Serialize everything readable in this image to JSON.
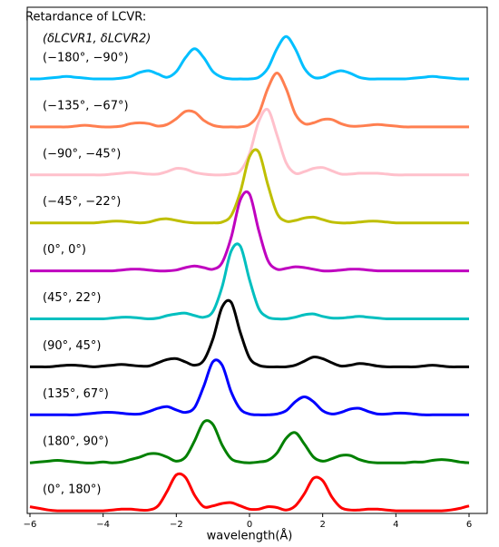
{
  "chart_data": {
    "type": "line",
    "title": "Retardance of LCVR:",
    "subtitle": "(δLCVR1, δLCVR2)",
    "xlabel": "wavelength(Å)",
    "xlim": [
      -6,
      6
    ],
    "xticks": [
      {
        "value": -6,
        "label": "−6"
      },
      {
        "value": -4,
        "label": "−4"
      },
      {
        "value": -2,
        "label": "−2"
      },
      0,
      2,
      4,
      6
    ],
    "x": [
      -6,
      -5.75,
      -5.5,
      -5.25,
      -5,
      -4.75,
      -4.5,
      -4.25,
      -4,
      -3.75,
      -3.5,
      -3.25,
      -3,
      -2.75,
      -2.5,
      -2.25,
      -2,
      -1.75,
      -1.5,
      -1.25,
      -1,
      -0.75,
      -0.5,
      -0.25,
      0,
      0.25,
      0.5,
      0.75,
      1,
      1.25,
      1.5,
      1.75,
      2,
      2.25,
      2.5,
      2.75,
      3,
      3.25,
      3.5,
      3.75,
      4,
      4.25,
      4.5,
      4.75,
      5,
      5.25,
      5.5,
      5.75,
      6
    ],
    "series": [
      {
        "name": "(−180°, −90°)",
        "color": "#00bfff",
        "values": [
          0,
          0,
          0.01,
          0.02,
          0.03,
          0.02,
          0.01,
          0,
          0,
          0,
          0.01,
          0.03,
          0.08,
          0.1,
          0.06,
          0.02,
          0.09,
          0.26,
          0.37,
          0.26,
          0.09,
          0.02,
          0,
          0,
          0,
          0.02,
          0.13,
          0.37,
          0.52,
          0.37,
          0.13,
          0.02,
          0.02,
          0.07,
          0.1,
          0.07,
          0.02,
          0,
          0,
          0,
          0,
          0,
          0.01,
          0.02,
          0.03,
          0.02,
          0.01,
          0,
          0
        ]
      },
      {
        "name": "(−135°, −67°)",
        "color": "#ff7f50",
        "values": [
          0,
          0,
          0,
          0,
          0,
          0.01,
          0.02,
          0.01,
          0,
          0,
          0.01,
          0.04,
          0.05,
          0.04,
          0.01,
          0.03,
          0.1,
          0.19,
          0.18,
          0.08,
          0.02,
          0,
          0,
          0,
          0.03,
          0.16,
          0.47,
          0.66,
          0.47,
          0.16,
          0.04,
          0.05,
          0.09,
          0.09,
          0.04,
          0.01,
          0.01,
          0.02,
          0.03,
          0.02,
          0.01,
          0,
          0,
          0,
          0,
          0,
          0,
          0,
          0
        ]
      },
      {
        "name": "(−90°, −45°)",
        "color": "#ffc0cb",
        "values": [
          0,
          0,
          0,
          0,
          0,
          0,
          0,
          0,
          0,
          0.01,
          0.02,
          0.03,
          0.02,
          0.01,
          0.01,
          0.04,
          0.08,
          0.07,
          0.03,
          0.01,
          0,
          0,
          0.01,
          0.05,
          0.26,
          0.65,
          0.8,
          0.49,
          0.15,
          0.02,
          0.04,
          0.08,
          0.09,
          0.05,
          0.01,
          0.01,
          0.02,
          0.02,
          0.02,
          0.01,
          0,
          0,
          0,
          0,
          0,
          0,
          0,
          0,
          0
        ]
      },
      {
        "name": "(−45°, −22°)",
        "color": "#bfbf00",
        "values": [
          0,
          0,
          0,
          0,
          0,
          0,
          0,
          0,
          0.01,
          0.02,
          0.02,
          0.01,
          0,
          0.01,
          0.04,
          0.05,
          0.03,
          0.01,
          0,
          0,
          0,
          0.01,
          0.09,
          0.38,
          0.81,
          0.87,
          0.47,
          0.12,
          0.02,
          0.03,
          0.06,
          0.07,
          0.04,
          0.01,
          0,
          0,
          0.01,
          0.02,
          0.02,
          0.01,
          0,
          0,
          0,
          0,
          0,
          0,
          0,
          0,
          0
        ]
      },
      {
        "name": "(0°, 0°)",
        "color": "#bf00bf",
        "values": [
          0,
          0,
          0,
          0,
          0,
          0,
          0,
          0,
          0,
          0,
          0.01,
          0.02,
          0.02,
          0.01,
          0,
          0,
          0.01,
          0.04,
          0.06,
          0.04,
          0.02,
          0.1,
          0.41,
          0.87,
          0.94,
          0.5,
          0.13,
          0.02,
          0.03,
          0.05,
          0.04,
          0.02,
          0,
          0,
          0.01,
          0.02,
          0.02,
          0.01,
          0,
          0,
          0,
          0,
          0,
          0,
          0,
          0,
          0,
          0,
          0
        ]
      },
      {
        "name": "(45°, 22°)",
        "color": "#00bfbf",
        "values": [
          0,
          0,
          0,
          0,
          0,
          0,
          0,
          0,
          0,
          0.01,
          0.02,
          0.02,
          0.01,
          0,
          0.01,
          0.04,
          0.06,
          0.07,
          0.04,
          0.02,
          0.09,
          0.39,
          0.83,
          0.89,
          0.48,
          0.13,
          0.02,
          0,
          0,
          0.02,
          0.05,
          0.06,
          0.03,
          0.01,
          0.01,
          0.02,
          0.03,
          0.02,
          0.01,
          0,
          0,
          0,
          0,
          0,
          0,
          0,
          0,
          0,
          0
        ]
      },
      {
        "name": "(90°, 45°)",
        "color": "#000000",
        "values": [
          0,
          0,
          0,
          0.01,
          0.02,
          0.02,
          0.01,
          0,
          0.01,
          0.02,
          0.03,
          0.02,
          0.01,
          0.01,
          0.05,
          0.09,
          0.1,
          0.06,
          0.02,
          0.08,
          0.34,
          0.73,
          0.79,
          0.42,
          0.11,
          0.02,
          0,
          0,
          0,
          0.02,
          0.07,
          0.12,
          0.1,
          0.05,
          0.01,
          0.02,
          0.04,
          0.03,
          0.01,
          0,
          0,
          0,
          0,
          0.01,
          0.02,
          0.01,
          0,
          0,
          0
        ]
      },
      {
        "name": "(135°, 67°)",
        "color": "#0000ff",
        "values": [
          0,
          0,
          0,
          0,
          0,
          0,
          0.01,
          0.02,
          0.03,
          0.03,
          0.02,
          0.01,
          0.01,
          0.04,
          0.08,
          0.1,
          0.06,
          0.03,
          0.09,
          0.35,
          0.65,
          0.61,
          0.28,
          0.07,
          0.01,
          0,
          0,
          0.01,
          0.05,
          0.16,
          0.22,
          0.16,
          0.05,
          0.01,
          0.03,
          0.07,
          0.08,
          0.04,
          0.01,
          0.01,
          0.02,
          0.02,
          0.01,
          0,
          0,
          0,
          0,
          0,
          0
        ]
      },
      {
        "name": "(180°, 90°)",
        "color": "#008000",
        "values": [
          0,
          0.01,
          0.02,
          0.03,
          0.02,
          0.01,
          0,
          0,
          0.01,
          0,
          0.01,
          0.04,
          0.07,
          0.11,
          0.11,
          0.07,
          0.02,
          0.07,
          0.27,
          0.5,
          0.47,
          0.22,
          0.05,
          0.01,
          0,
          0.01,
          0.03,
          0.12,
          0.3,
          0.37,
          0.23,
          0.07,
          0.02,
          0.05,
          0.09,
          0.09,
          0.04,
          0.01,
          0,
          0,
          0,
          0,
          0.01,
          0.01,
          0.03,
          0.04,
          0.03,
          0.01,
          0
        ]
      },
      {
        "name": "(0°, 180°)",
        "color": "#ff0000",
        "values": [
          0.05,
          0.03,
          0.01,
          0,
          0,
          0,
          0,
          0,
          0,
          0.01,
          0.02,
          0.02,
          0.01,
          0.01,
          0.06,
          0.24,
          0.44,
          0.41,
          0.19,
          0.05,
          0.06,
          0.09,
          0.1,
          0.06,
          0.02,
          0.02,
          0.05,
          0.04,
          0.01,
          0.06,
          0.21,
          0.4,
          0.37,
          0.17,
          0.04,
          0.01,
          0.01,
          0.02,
          0.02,
          0.01,
          0,
          0,
          0,
          0,
          0,
          0,
          0.01,
          0.03,
          0.06
        ]
      }
    ]
  }
}
